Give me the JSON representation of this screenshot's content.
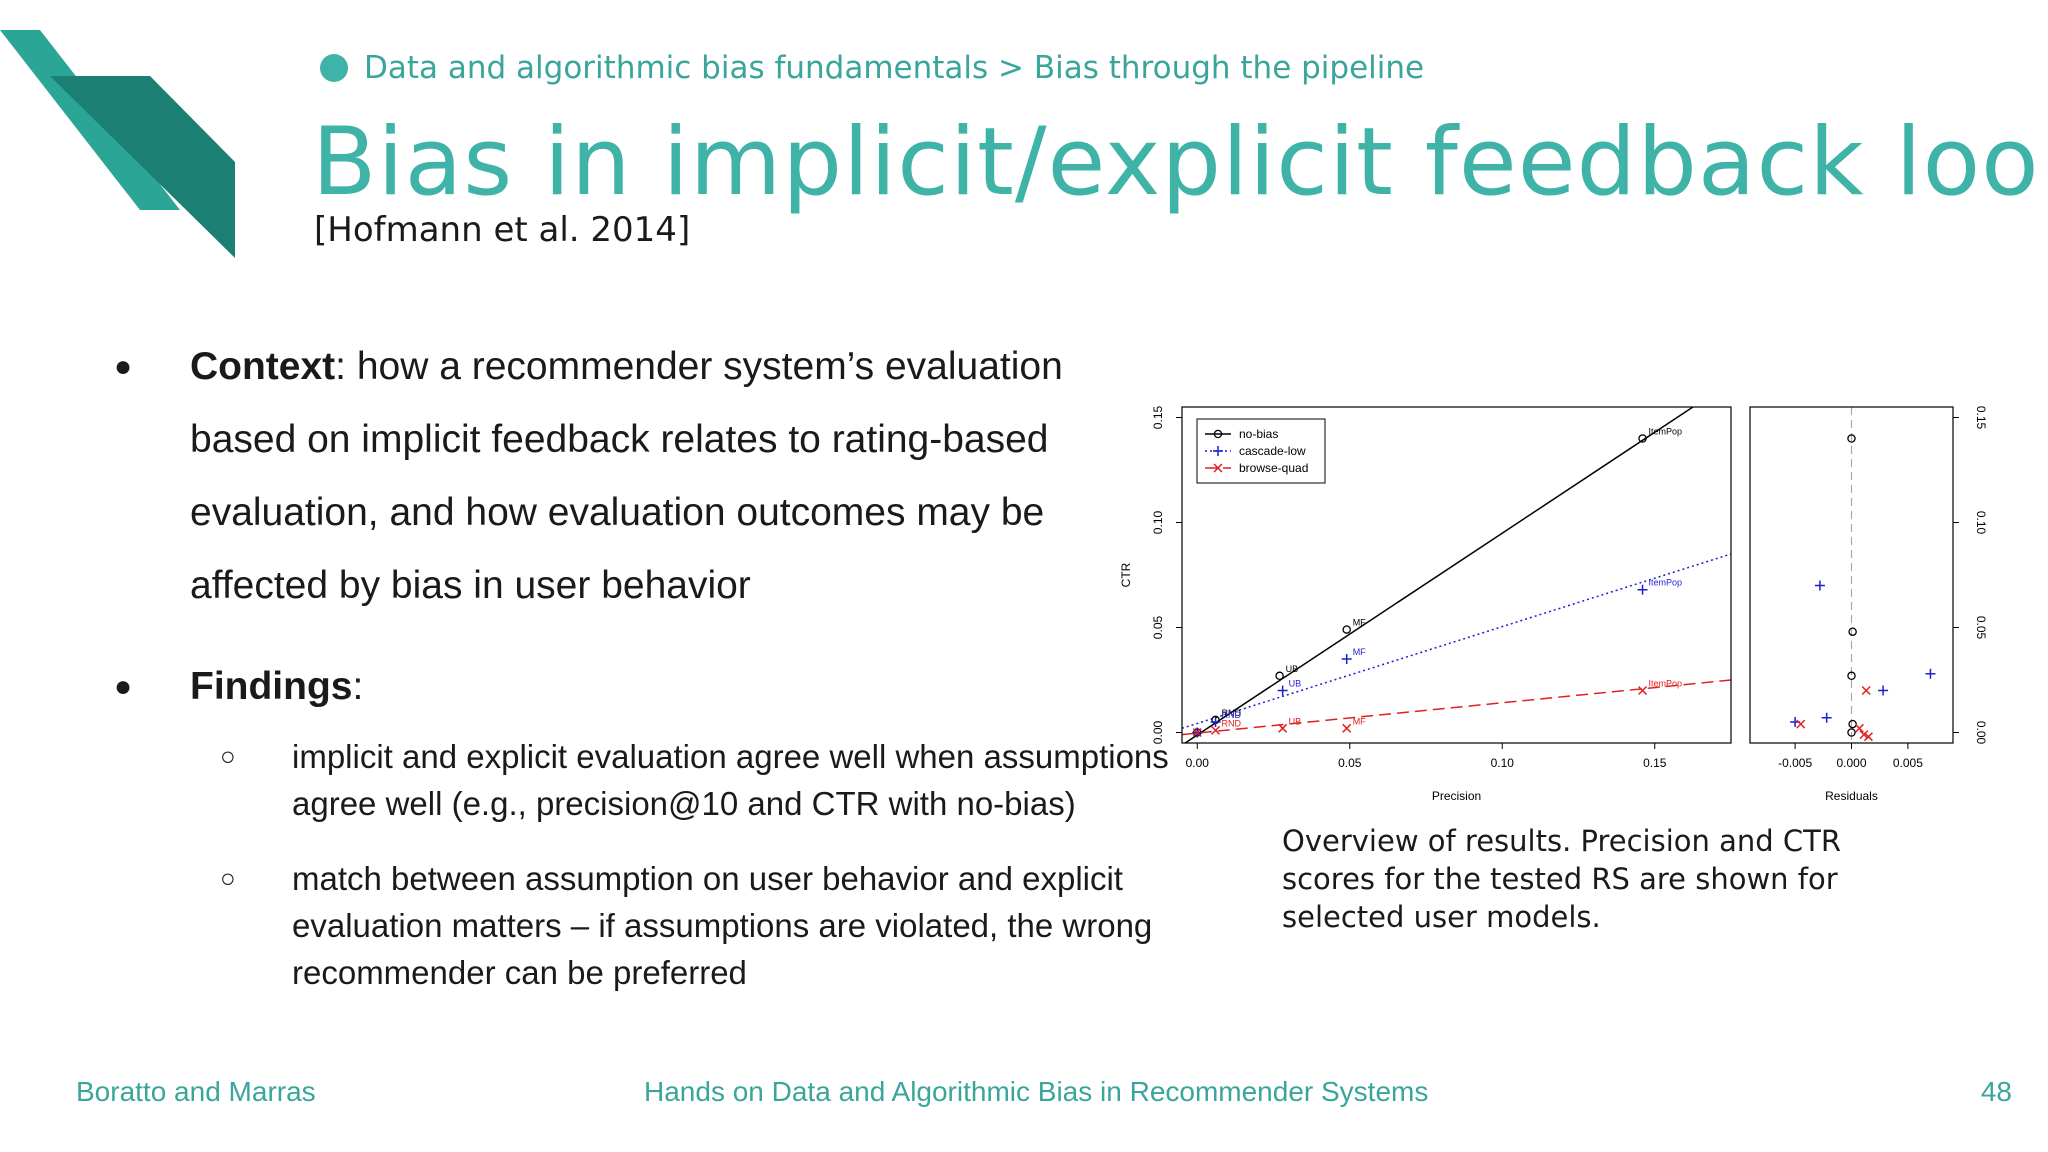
{
  "breadcrumb": "Data and algorithmic bias fundamentals > Bias through the pipeline",
  "title": "Bias in implicit/explicit feedback loop",
  "citation": "[Hofmann et al. 2014]",
  "bullets": {
    "context_label": "Context",
    "context_text": ": how a recommender system’s evaluation based on implicit feedback relates to rating-based evaluation, and how evaluation outcomes may be affected by bias in user behavior",
    "findings_label": "Findings",
    "findings_colon": ":",
    "findings": [
      "implicit and explicit evaluation agree well when assumptions agree well (e.g., precision@10 and CTR with no-bias)",
      "match between assumption on user behavior and explicit evaluation matters – if assumptions are violated, the wrong recommender can be preferred"
    ]
  },
  "caption": "Overview of results. Precision and CTR scores for the tested RS are shown for selected user models.",
  "footer": {
    "left": "Boratto and Marras",
    "center": "Hands on Data and Algorithmic Bias in Recommender Systems",
    "page": "48"
  },
  "colors": {
    "accent": "#3fb3a7",
    "no_bias": "#000000",
    "cascade_low": "#1f1fd0",
    "browse_quad": "#e02020"
  },
  "chart_data": [
    {
      "type": "scatter",
      "xlabel": "Precision",
      "ylabel": "CTR",
      "xlim": [
        -0.005,
        0.175
      ],
      "ylim": [
        -0.005,
        0.155
      ],
      "xticks": [
        "0.00",
        "0.05",
        "0.10",
        "0.15"
      ],
      "yticks": [
        "0.00",
        "0.05",
        "0.10",
        "0.15"
      ],
      "legend_position": "top-left",
      "series": [
        {
          "name": "no-bias",
          "marker": "circle",
          "line": "solid",
          "color": "#000000",
          "fit": [
            [
              -0.005,
              -0.006
            ],
            [
              0.175,
              0.167
            ]
          ],
          "points": [
            {
              "x": 0.0,
              "y": 0.0,
              "label": ""
            },
            {
              "x": 0.006,
              "y": 0.006,
              "label": "RND"
            },
            {
              "x": 0.027,
              "y": 0.027,
              "label": "UB"
            },
            {
              "x": 0.049,
              "y": 0.049,
              "label": "MF"
            },
            {
              "x": 0.146,
              "y": 0.14,
              "label": "ItemPop"
            }
          ]
        },
        {
          "name": "cascade-low",
          "marker": "plus",
          "line": "dotted",
          "color": "#1f1fd0",
          "fit": [
            [
              -0.005,
              0.002
            ],
            [
              0.175,
              0.085
            ]
          ],
          "points": [
            {
              "x": 0.0,
              "y": 0.0,
              "label": ""
            },
            {
              "x": 0.006,
              "y": 0.005,
              "label": "RND"
            },
            {
              "x": 0.028,
              "y": 0.02,
              "label": "UB"
            },
            {
              "x": 0.049,
              "y": 0.035,
              "label": "MF"
            },
            {
              "x": 0.146,
              "y": 0.068,
              "label": "ItemPop"
            }
          ]
        },
        {
          "name": "browse-quad",
          "marker": "cross",
          "line": "dashed",
          "color": "#e02020",
          "fit": [
            [
              -0.005,
              -0.001
            ],
            [
              0.175,
              0.025
            ]
          ],
          "points": [
            {
              "x": 0.0,
              "y": 0.0,
              "label": ""
            },
            {
              "x": 0.006,
              "y": 0.001,
              "label": "RND"
            },
            {
              "x": 0.028,
              "y": 0.002,
              "label": "UB"
            },
            {
              "x": 0.049,
              "y": 0.002,
              "label": "MF"
            },
            {
              "x": 0.146,
              "y": 0.02,
              "label": "ItemPop"
            }
          ]
        }
      ]
    },
    {
      "type": "scatter",
      "xlabel": "Residuals",
      "ylabel": "",
      "xlim": [
        -0.009,
        0.009
      ],
      "ylim": [
        -0.005,
        0.155
      ],
      "xticks": [
        "-0.005",
        "0.000",
        "0.005"
      ],
      "yticks": [
        "0.00",
        "0.05",
        "0.10",
        "0.15"
      ],
      "series": [
        {
          "name": "no-bias",
          "marker": "circle",
          "color": "#000000",
          "points": [
            [
              0.0,
              0.14
            ],
            [
              0.0001,
              0.048
            ],
            [
              0.0,
              0.027
            ],
            [
              0.0001,
              0.004
            ],
            [
              0.0,
              0.0
            ]
          ]
        },
        {
          "name": "cascade-low",
          "marker": "plus",
          "color": "#1f1fd0",
          "points": [
            [
              -0.0028,
              0.07
            ],
            [
              0.007,
              0.028
            ],
            [
              0.0028,
              0.02
            ],
            [
              -0.0022,
              0.007
            ],
            [
              -0.005,
              0.005
            ]
          ]
        },
        {
          "name": "browse-quad",
          "marker": "cross",
          "color": "#e02020",
          "points": [
            [
              0.0013,
              0.02
            ],
            [
              -0.0045,
              0.004
            ],
            [
              0.0007,
              0.002
            ],
            [
              0.0011,
              -0.001
            ],
            [
              0.0015,
              -0.002
            ]
          ]
        }
      ]
    }
  ]
}
